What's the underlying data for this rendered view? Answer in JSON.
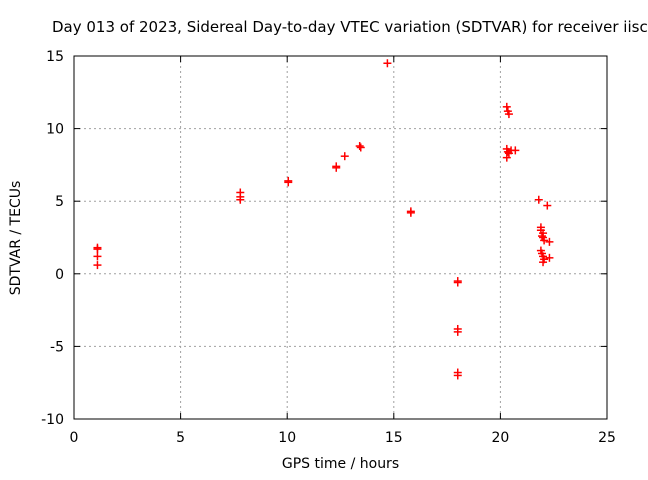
{
  "chart_data": {
    "type": "scatter",
    "title": "Day 013 of 2023, Sidereal Day-to-day VTEC variation (SDTVAR) for receiver iisc",
    "xlabel": "GPS time / hours",
    "ylabel": "SDTVAR / TECUs",
    "xlim": [
      0,
      25
    ],
    "ylim": [
      -10,
      15
    ],
    "xticks": [
      0,
      5,
      10,
      15,
      20,
      25
    ],
    "yticks": [
      -10,
      -5,
      0,
      5,
      10,
      15
    ],
    "grid": true,
    "marker": "+",
    "color": "#ff0000",
    "series": [
      {
        "name": "SDTVAR",
        "points": [
          [
            1.1,
            1.8
          ],
          [
            1.1,
            1.7
          ],
          [
            1.1,
            1.2
          ],
          [
            1.1,
            0.6
          ],
          [
            7.8,
            5.6
          ],
          [
            7.8,
            5.3
          ],
          [
            7.8,
            5.1
          ],
          [
            10.05,
            6.4
          ],
          [
            10.05,
            6.3
          ],
          [
            12.3,
            7.4
          ],
          [
            12.3,
            7.3
          ],
          [
            12.7,
            8.1
          ],
          [
            13.4,
            8.8
          ],
          [
            13.45,
            8.7
          ],
          [
            14.7,
            14.5
          ],
          [
            15.8,
            4.3
          ],
          [
            15.8,
            4.2
          ],
          [
            18.0,
            -0.5
          ],
          [
            18.0,
            -0.6
          ],
          [
            18.0,
            -3.8
          ],
          [
            18.0,
            -4.0
          ],
          [
            18.0,
            -6.8
          ],
          [
            18.0,
            -7.0
          ],
          [
            20.3,
            11.5
          ],
          [
            20.35,
            11.2
          ],
          [
            20.4,
            11.0
          ],
          [
            20.3,
            8.6
          ],
          [
            20.35,
            8.4
          ],
          [
            20.4,
            8.3
          ],
          [
            20.3,
            8.0
          ],
          [
            20.5,
            8.5
          ],
          [
            20.7,
            8.5
          ],
          [
            21.8,
            5.1
          ],
          [
            22.2,
            4.7
          ],
          [
            21.9,
            3.2
          ],
          [
            21.9,
            3.0
          ],
          [
            22.0,
            2.8
          ],
          [
            21.95,
            2.6
          ],
          [
            22.0,
            2.5
          ],
          [
            22.05,
            2.3
          ],
          [
            22.3,
            2.2
          ],
          [
            21.9,
            1.6
          ],
          [
            21.95,
            1.4
          ],
          [
            22.0,
            1.2
          ],
          [
            22.05,
            1.0
          ],
          [
            22.0,
            0.8
          ],
          [
            22.3,
            1.1
          ]
        ]
      }
    ]
  }
}
